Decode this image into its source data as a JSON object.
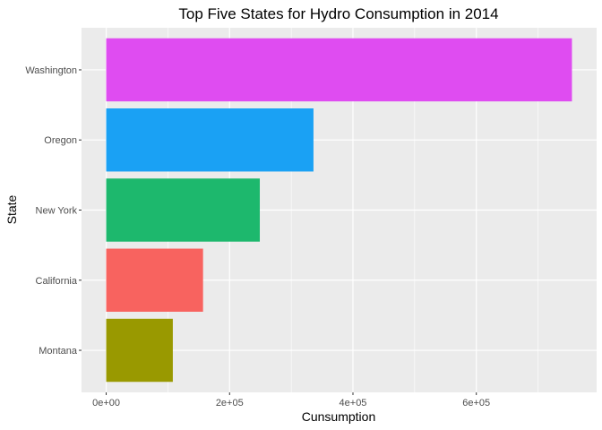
{
  "chart_data": {
    "type": "bar",
    "orientation": "horizontal",
    "title": "Top Five States for Hydro Consumption in 2014",
    "xlabel": "Cunsumption",
    "ylabel": "State",
    "categories": [
      "Montana",
      "California",
      "New York",
      "Oregon",
      "Washington"
    ],
    "values": [
      108000,
      157000,
      249000,
      336000,
      755000
    ],
    "colors": [
      "#999900",
      "#F8635F",
      "#1DB86D",
      "#1AA1F4",
      "#DF4CF1"
    ],
    "xlim": [
      -40000,
      795000
    ],
    "x_ticks": [
      0,
      200000,
      400000,
      600000
    ],
    "x_tick_labels": [
      "0e+00",
      "2e+05",
      "4e+05",
      "6e+05"
    ],
    "grid": true,
    "legend": "none",
    "panel_color": "#EBEBEB",
    "grid_color": "#FFFFFF"
  }
}
